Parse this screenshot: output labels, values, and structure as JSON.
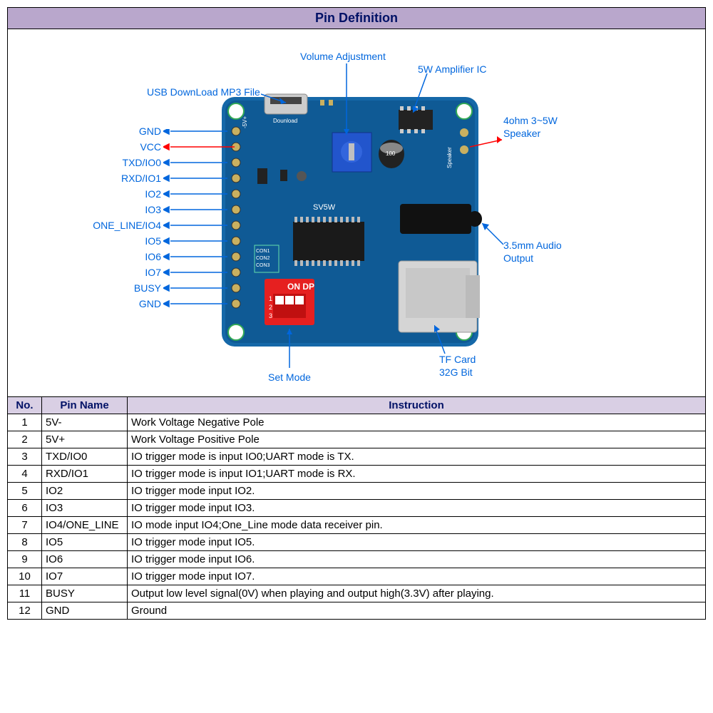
{
  "title": "Pin Definition",
  "columns": [
    "No.",
    "Pin Name",
    "Instruction"
  ],
  "rows": [
    [
      "1",
      "5V-",
      "Work Voltage Negative Pole"
    ],
    [
      "2",
      "5V+",
      "Work Voltage Positive Pole"
    ],
    [
      "3",
      "TXD/IO0",
      "IO trigger mode is input IO0;UART mode is TX."
    ],
    [
      "4",
      "RXD/IO1",
      "IO trigger mode is input IO1;UART mode is RX."
    ],
    [
      "5",
      "IO2",
      "IO trigger mode input IO2."
    ],
    [
      "6",
      "IO3",
      "IO trigger mode input IO3."
    ],
    [
      "7",
      "IO4/ONE_LINE",
      "IO mode input IO4;One_Line mode data receiver pin."
    ],
    [
      "8",
      "IO5",
      "IO trigger mode input IO5."
    ],
    [
      "9",
      "IO6",
      "IO trigger mode input IO6."
    ],
    [
      "10",
      "IO7",
      "IO trigger mode input IO7."
    ],
    [
      "11",
      "BUSY",
      "Output low level signal(0V) when playing and output high(3.3V) after playing."
    ],
    [
      "12",
      "GND",
      "Ground"
    ]
  ],
  "diagram_labels": {
    "usb": "USB DownLoad MP3 File",
    "volume": "Volume Adjustment",
    "amp": "5W Amplifier IC",
    "speaker1": "4ohm 3~5W",
    "speaker2": "Speaker",
    "audio1": "3.5mm Audio",
    "audio2": "Output",
    "tf1": "TF Card",
    "tf2": "32G Bit",
    "setmode": "Set Mode",
    "pins": [
      "GND",
      "VCC",
      "TXD/IO0",
      "RXD/IO1",
      "IO2",
      "IO3",
      "ONE_LINE/IO4",
      "IO5",
      "IO6",
      "IO7",
      "BUSY",
      "GND"
    ]
  },
  "colors": {
    "header_bg": "#b9a7cc",
    "header_text": "#001166",
    "label_color": "#0066dd",
    "pcb_color": "#1568a8",
    "pcb_dark": "#0a3d6b",
    "dip_red": "#e62020",
    "pot_blue": "#2255cc",
    "border": "#000000"
  },
  "typography": {
    "title_fontsize": 18,
    "label_fontsize": 14,
    "table_fontsize": 15
  }
}
